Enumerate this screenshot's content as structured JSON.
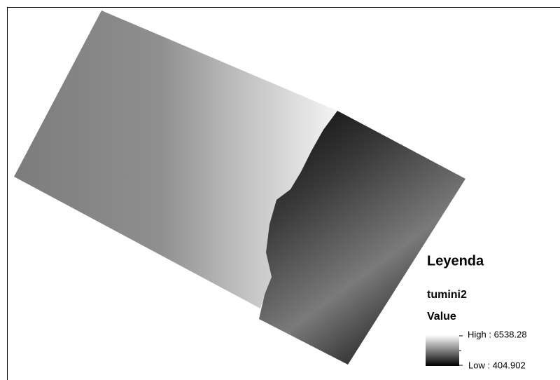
{
  "legend": {
    "title": "Leyenda",
    "layer": "tumini2",
    "field": "Value",
    "high": "High : 6538.28",
    "low": "Low : 404.902"
  }
}
